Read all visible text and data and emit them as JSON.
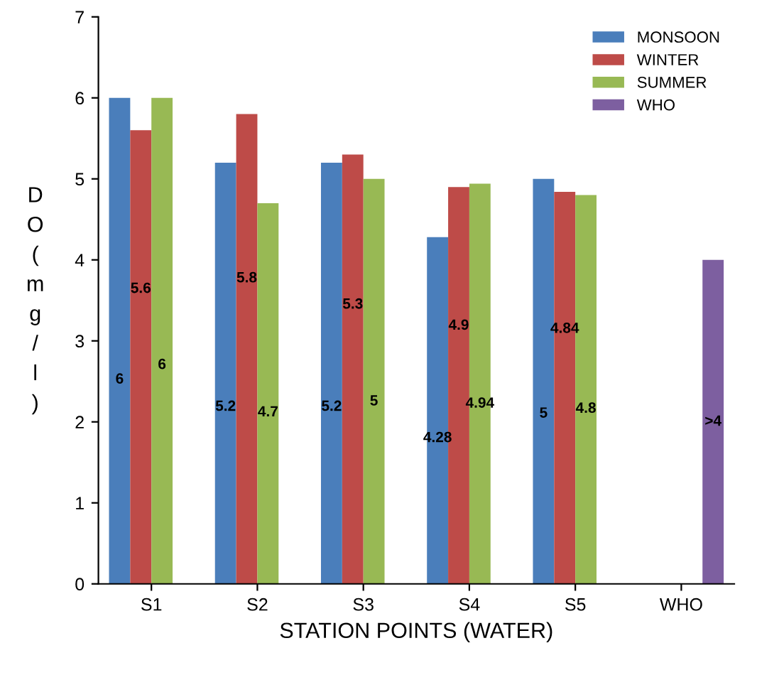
{
  "chart_data": {
    "type": "bar",
    "xlabel": "STATION POINTS (WATER)",
    "ylabel": "DO (mg/l)",
    "categories": [
      "S1",
      "S2",
      "S3",
      "S4",
      "S5",
      "WHO"
    ],
    "series": [
      {
        "name": "MONSOON",
        "color": "#4a7ebb",
        "values": [
          6,
          5.2,
          5.2,
          4.28,
          5,
          null
        ],
        "value_labels": [
          "6",
          "5.2",
          "5.2",
          "4.28",
          "5",
          null
        ]
      },
      {
        "name": "WINTER",
        "color": "#be4b48",
        "values": [
          5.6,
          5.8,
          5.3,
          4.9,
          4.84,
          null
        ],
        "value_labels": [
          "5.6",
          "5.8",
          "5.3",
          "4.9",
          "4.84",
          null
        ]
      },
      {
        "name": "SUMMER",
        "color": "#98b954",
        "values": [
          6,
          4.7,
          5,
          4.94,
          4.8,
          null
        ],
        "value_labels": [
          "6",
          "4.7",
          "5",
          "4.94",
          "4.8",
          null
        ]
      },
      {
        "name": "WHO",
        "color": "#7d5fa0",
        "values": [
          null,
          null,
          null,
          null,
          null,
          4
        ],
        "value_labels": [
          null,
          null,
          null,
          null,
          null,
          ">4"
        ]
      }
    ],
    "ylim": [
      0,
      7
    ],
    "yticks": [
      0,
      1,
      2,
      3,
      4,
      5,
      6,
      7
    ],
    "legend": "top right",
    "grid": false
  }
}
